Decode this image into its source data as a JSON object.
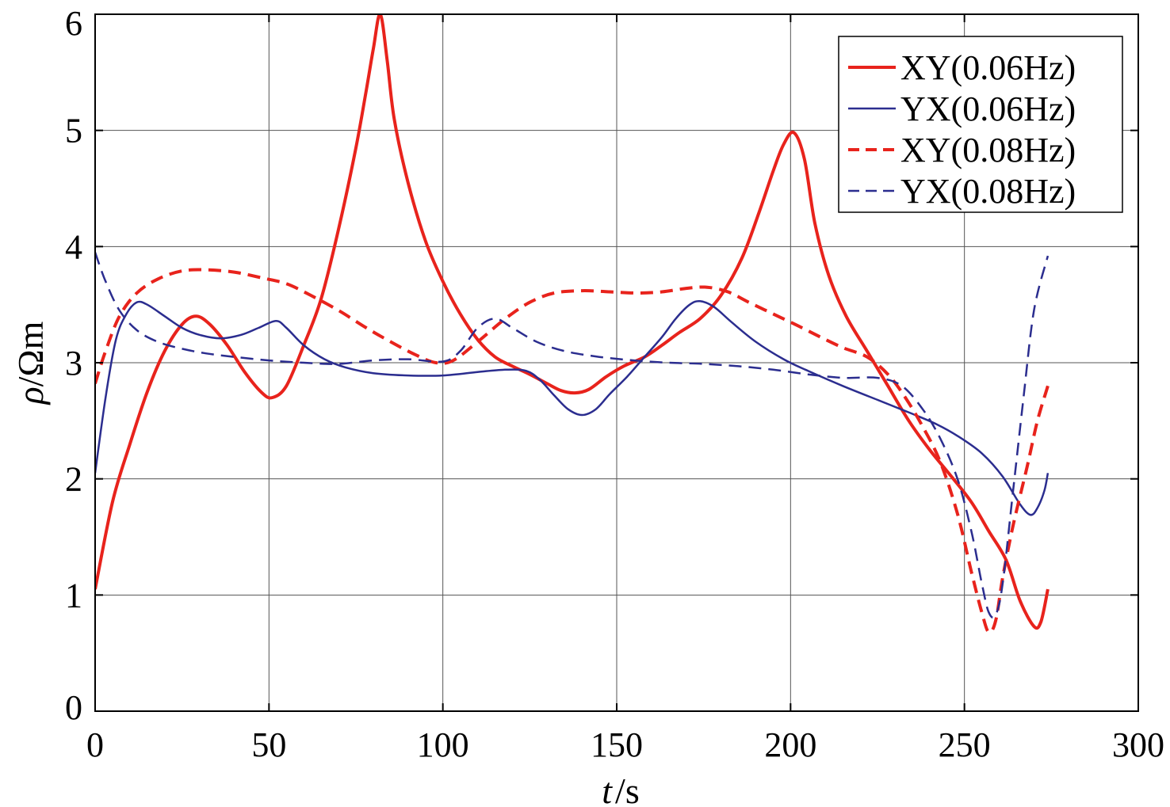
{
  "chart_data": {
    "type": "line",
    "xlabel": {
      "var": "t",
      "sep": "/",
      "unit": "s"
    },
    "ylabel": {
      "var": "ρ",
      "sep": "/",
      "unit": "Ωm"
    },
    "xlim": [
      0,
      300
    ],
    "ylim": [
      0,
      6
    ],
    "xticks": [
      0,
      50,
      100,
      150,
      200,
      250,
      300
    ],
    "yticks": [
      0,
      1,
      2,
      3,
      4,
      5,
      6
    ],
    "grid": true,
    "legend_position": "top-right",
    "series": [
      {
        "name": "XY(0.06Hz)",
        "color": "#e8231c",
        "dash": "solid",
        "weight": "bold",
        "points": [
          [
            0,
            1.05
          ],
          [
            5,
            1.8
          ],
          [
            10,
            2.3
          ],
          [
            15,
            2.75
          ],
          [
            20,
            3.1
          ],
          [
            25,
            3.33
          ],
          [
            29,
            3.4
          ],
          [
            33,
            3.33
          ],
          [
            38,
            3.15
          ],
          [
            43,
            2.92
          ],
          [
            48,
            2.74
          ],
          [
            51,
            2.7
          ],
          [
            55,
            2.8
          ],
          [
            60,
            3.15
          ],
          [
            65,
            3.55
          ],
          [
            70,
            4.15
          ],
          [
            75,
            4.85
          ],
          [
            78,
            5.35
          ],
          [
            80,
            5.7
          ],
          [
            82,
            6.0
          ],
          [
            84,
            5.6
          ],
          [
            86,
            5.1
          ],
          [
            90,
            4.55
          ],
          [
            95,
            4.05
          ],
          [
            100,
            3.7
          ],
          [
            105,
            3.42
          ],
          [
            110,
            3.2
          ],
          [
            115,
            3.05
          ],
          [
            120,
            2.97
          ],
          [
            125,
            2.9
          ],
          [
            130,
            2.82
          ],
          [
            134,
            2.76
          ],
          [
            138,
            2.74
          ],
          [
            142,
            2.77
          ],
          [
            147,
            2.88
          ],
          [
            152,
            2.97
          ],
          [
            158,
            3.05
          ],
          [
            163,
            3.15
          ],
          [
            168,
            3.26
          ],
          [
            174,
            3.38
          ],
          [
            180,
            3.58
          ],
          [
            186,
            3.9
          ],
          [
            191,
            4.3
          ],
          [
            195,
            4.65
          ],
          [
            198,
            4.88
          ],
          [
            201,
            4.98
          ],
          [
            204,
            4.75
          ],
          [
            207,
            4.2
          ],
          [
            211,
            3.75
          ],
          [
            216,
            3.4
          ],
          [
            222,
            3.1
          ],
          [
            228,
            2.8
          ],
          [
            234,
            2.5
          ],
          [
            240,
            2.25
          ],
          [
            246,
            2.03
          ],
          [
            252,
            1.8
          ],
          [
            257,
            1.55
          ],
          [
            262,
            1.3
          ],
          [
            266,
            0.95
          ],
          [
            270,
            0.73
          ],
          [
            272,
            0.77
          ],
          [
            274,
            1.05
          ]
        ]
      },
      {
        "name": "YX(0.06Hz)",
        "color": "#2b2d8f",
        "dash": "solid",
        "weight": "normal",
        "points": [
          [
            0,
            2.05
          ],
          [
            3,
            2.7
          ],
          [
            6,
            3.2
          ],
          [
            9,
            3.42
          ],
          [
            12,
            3.52
          ],
          [
            15,
            3.5
          ],
          [
            20,
            3.4
          ],
          [
            25,
            3.3
          ],
          [
            30,
            3.24
          ],
          [
            36,
            3.21
          ],
          [
            42,
            3.24
          ],
          [
            47,
            3.3
          ],
          [
            52,
            3.36
          ],
          [
            55,
            3.3
          ],
          [
            60,
            3.15
          ],
          [
            66,
            3.03
          ],
          [
            72,
            2.96
          ],
          [
            80,
            2.91
          ],
          [
            90,
            2.89
          ],
          [
            100,
            2.89
          ],
          [
            110,
            2.92
          ],
          [
            118,
            2.94
          ],
          [
            124,
            2.93
          ],
          [
            128,
            2.85
          ],
          [
            132,
            2.72
          ],
          [
            136,
            2.6
          ],
          [
            140,
            2.55
          ],
          [
            144,
            2.6
          ],
          [
            148,
            2.73
          ],
          [
            153,
            2.88
          ],
          [
            158,
            3.05
          ],
          [
            163,
            3.22
          ],
          [
            167,
            3.38
          ],
          [
            171,
            3.5
          ],
          [
            174,
            3.53
          ],
          [
            178,
            3.48
          ],
          [
            183,
            3.35
          ],
          [
            190,
            3.18
          ],
          [
            198,
            3.03
          ],
          [
            205,
            2.93
          ],
          [
            215,
            2.8
          ],
          [
            225,
            2.68
          ],
          [
            235,
            2.56
          ],
          [
            242,
            2.47
          ],
          [
            248,
            2.37
          ],
          [
            255,
            2.22
          ],
          [
            261,
            2.02
          ],
          [
            266,
            1.78
          ],
          [
            269,
            1.69
          ],
          [
            271,
            1.75
          ],
          [
            273,
            1.9
          ],
          [
            274,
            2.05
          ]
        ]
      },
      {
        "name": "XY(0.08Hz)",
        "color": "#e8231c",
        "dash": "dashed",
        "weight": "bold",
        "points": [
          [
            0,
            2.82
          ],
          [
            3,
            3.1
          ],
          [
            7,
            3.4
          ],
          [
            12,
            3.6
          ],
          [
            18,
            3.72
          ],
          [
            25,
            3.79
          ],
          [
            32,
            3.8
          ],
          [
            40,
            3.78
          ],
          [
            48,
            3.73
          ],
          [
            55,
            3.68
          ],
          [
            62,
            3.58
          ],
          [
            70,
            3.45
          ],
          [
            78,
            3.3
          ],
          [
            85,
            3.18
          ],
          [
            92,
            3.07
          ],
          [
            98,
            3.0
          ],
          [
            103,
            3.02
          ],
          [
            110,
            3.18
          ],
          [
            118,
            3.38
          ],
          [
            125,
            3.52
          ],
          [
            132,
            3.6
          ],
          [
            140,
            3.62
          ],
          [
            148,
            3.61
          ],
          [
            156,
            3.6
          ],
          [
            163,
            3.61
          ],
          [
            170,
            3.64
          ],
          [
            176,
            3.65
          ],
          [
            182,
            3.61
          ],
          [
            188,
            3.52
          ],
          [
            195,
            3.42
          ],
          [
            202,
            3.32
          ],
          [
            208,
            3.23
          ],
          [
            215,
            3.13
          ],
          [
            222,
            3.05
          ],
          [
            228,
            2.9
          ],
          [
            233,
            2.7
          ],
          [
            238,
            2.45
          ],
          [
            243,
            2.15
          ],
          [
            248,
            1.7
          ],
          [
            252,
            1.2
          ],
          [
            255,
            0.85
          ],
          [
            257,
            0.68
          ],
          [
            259,
            0.78
          ],
          [
            261,
            1.15
          ],
          [
            264,
            1.6
          ],
          [
            268,
            2.1
          ],
          [
            271,
            2.5
          ],
          [
            274,
            2.8
          ]
        ]
      },
      {
        "name": "YX(0.08Hz)",
        "color": "#2b2d8f",
        "dash": "dashed",
        "weight": "normal",
        "points": [
          [
            0,
            3.95
          ],
          [
            3,
            3.7
          ],
          [
            7,
            3.45
          ],
          [
            12,
            3.28
          ],
          [
            18,
            3.18
          ],
          [
            25,
            3.12
          ],
          [
            32,
            3.08
          ],
          [
            40,
            3.05
          ],
          [
            50,
            3.02
          ],
          [
            60,
            3.0
          ],
          [
            70,
            2.99
          ],
          [
            80,
            3.02
          ],
          [
            90,
            3.03
          ],
          [
            100,
            3.01
          ],
          [
            105,
            3.1
          ],
          [
            110,
            3.3
          ],
          [
            115,
            3.38
          ],
          [
            120,
            3.3
          ],
          [
            127,
            3.18
          ],
          [
            135,
            3.1
          ],
          [
            145,
            3.05
          ],
          [
            155,
            3.02
          ],
          [
            165,
            3.0
          ],
          [
            175,
            2.99
          ],
          [
            185,
            2.97
          ],
          [
            195,
            2.94
          ],
          [
            205,
            2.9
          ],
          [
            215,
            2.87
          ],
          [
            225,
            2.87
          ],
          [
            232,
            2.8
          ],
          [
            238,
            2.6
          ],
          [
            243,
            2.35
          ],
          [
            248,
            2.0
          ],
          [
            252,
            1.55
          ],
          [
            255,
            1.1
          ],
          [
            257,
            0.85
          ],
          [
            259,
            0.83
          ],
          [
            261,
            1.1
          ],
          [
            264,
            1.9
          ],
          [
            267,
            2.7
          ],
          [
            270,
            3.45
          ],
          [
            274,
            3.92
          ]
        ]
      }
    ]
  }
}
